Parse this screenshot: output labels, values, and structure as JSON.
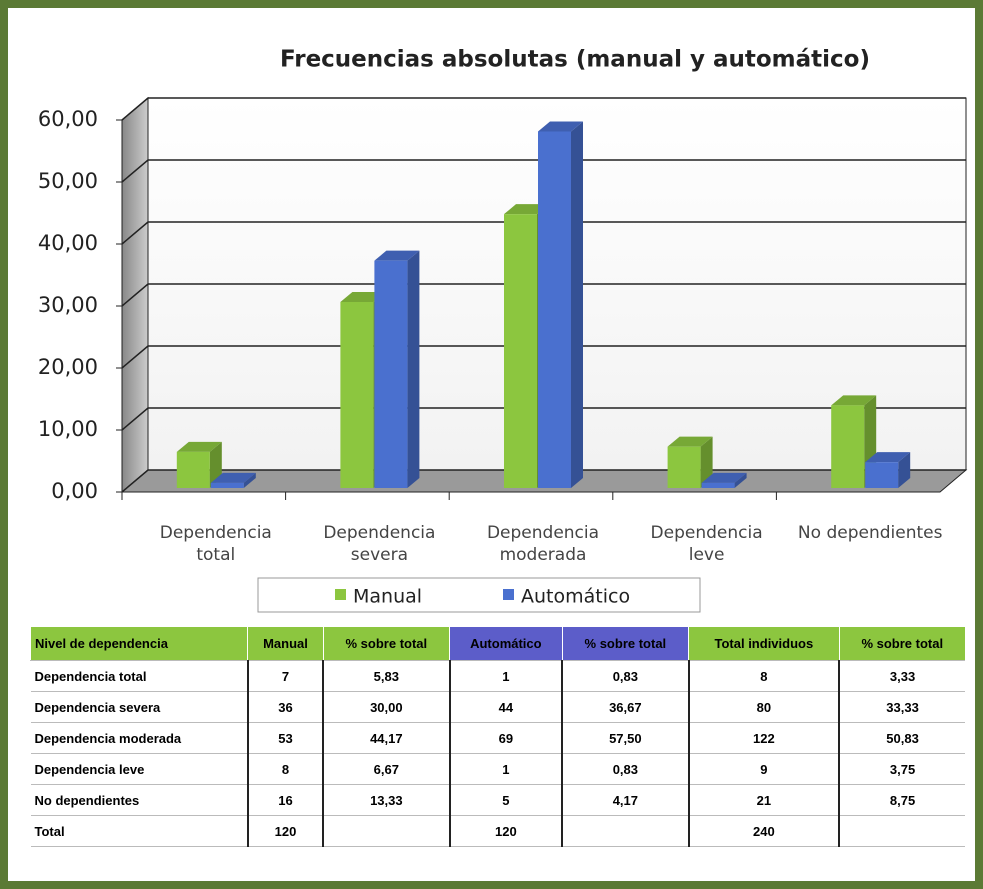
{
  "chart_data": {
    "type": "bar3d",
    "title": "Frecuencias absolutas (manual y automático)",
    "categories": [
      "Dependencia total",
      "Dependencia severa",
      "Dependencia moderada",
      "Dependencia leve",
      "No dependientes"
    ],
    "series": [
      {
        "name": "Manual",
        "color": "#8cc63f",
        "values": [
          5.83,
          30.0,
          44.17,
          6.67,
          13.33
        ]
      },
      {
        "name": "Automático",
        "color": "#4a70cf",
        "values": [
          0.83,
          36.67,
          57.5,
          0.83,
          4.17
        ]
      }
    ],
    "ylim": [
      0,
      60
    ],
    "yticks": [
      {
        "value": 0,
        "label": "0,00"
      },
      {
        "value": 10,
        "label": "10,00"
      },
      {
        "value": 20,
        "label": "20,00"
      },
      {
        "value": 30,
        "label": "30,00"
      },
      {
        "value": 40,
        "label": "40,00"
      },
      {
        "value": 50,
        "label": "50,00"
      },
      {
        "value": 60,
        "label": "60,00"
      }
    ],
    "grid": true
  },
  "table": {
    "header": [
      "Nivel de dependencia",
      "Manual",
      "% sobre total",
      "Automático",
      "% sobre total",
      "Total individuos",
      "% sobre total"
    ],
    "rows": [
      [
        "Dependencia total",
        "7",
        "5,83",
        "1",
        "0,83",
        "8",
        "3,33"
      ],
      [
        "Dependencia severa",
        "36",
        "30,00",
        "44",
        "36,67",
        "80",
        "33,33"
      ],
      [
        "Dependencia moderada",
        "53",
        "44,17",
        "69",
        "57,50",
        "122",
        "50,83"
      ],
      [
        "Dependencia leve",
        "8",
        "6,67",
        "1",
        "0,83",
        "9",
        "3,75"
      ],
      [
        "No dependientes",
        "16",
        "13,33",
        "5",
        "4,17",
        "21",
        "8,75"
      ],
      [
        "Total",
        "120",
        null,
        "120",
        null,
        "240",
        null
      ]
    ]
  }
}
